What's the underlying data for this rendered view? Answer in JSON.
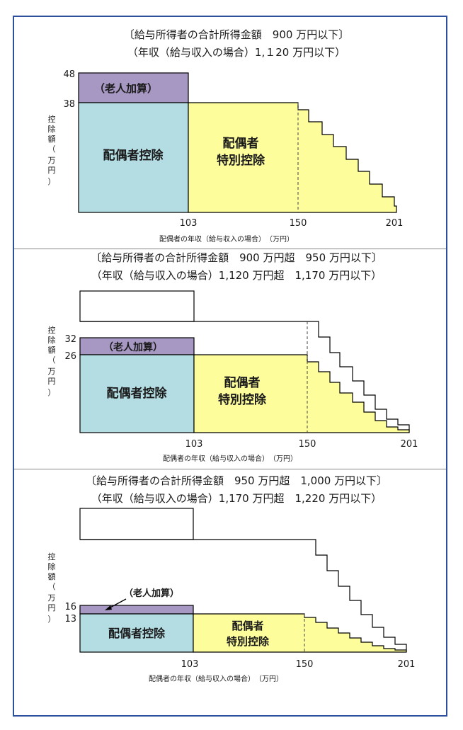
{
  "colors": {
    "frame": "#2e4f9b",
    "spouse_deduction": "#b3dde3",
    "special_deduction": "#fdfd9c",
    "elderly_addition": "#a797c3",
    "outline": "#000000"
  },
  "common": {
    "y_axis_label": [
      "控",
      "除",
      "額",
      "（",
      "万",
      "円",
      "）"
    ],
    "x_axis_label": "配偶者の年収（給与収入の場合）　（万円）",
    "x_ticks": [
      "103",
      "150",
      "201"
    ],
    "spouse_deduction_label": "配偶者控除",
    "special_deduction_label_line1": "配偶者",
    "special_deduction_label_line2": "特別控除",
    "elderly_addition_label": "（老人加算）"
  },
  "panels": [
    {
      "title_line1": "〔給与所得者の合計所得金額　900 万円以下〕",
      "title_line2": "（年収（給与収入の場合）1,１20 万円以下）",
      "y_ticks": [
        "48",
        "38"
      ]
    },
    {
      "title_line1": "〔給与所得者の合計所得金額　900 万円超　950 万円以下〕",
      "title_line2": "（年収（給与収入の場合）1,120 万円超　1,170 万円以下）",
      "y_ticks": [
        "32",
        "26"
      ]
    },
    {
      "title_line1": "〔給与所得者の合計所得金額　950 万円超　1,000 万円以下〕",
      "title_line2": "（年収（給与収入の場合）1,170 万円超　1,220 万円以下）",
      "y_ticks": [
        "16",
        "13"
      ]
    }
  ]
}
